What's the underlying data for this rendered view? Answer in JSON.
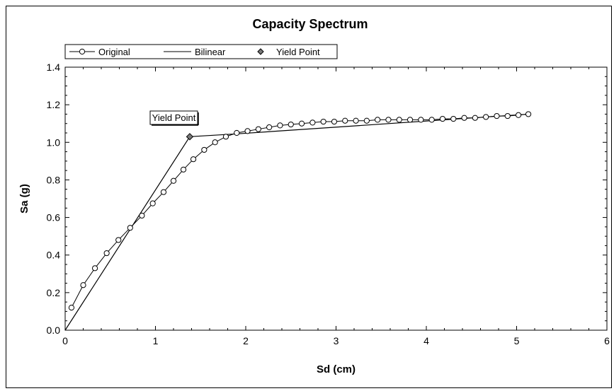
{
  "chart_data": {
    "type": "line",
    "title": "Capacity Spectrum",
    "xlabel": "Sd (cm)",
    "ylabel": "Sa (g)",
    "xlim": [
      0,
      6
    ],
    "ylim": [
      0.0,
      1.4
    ],
    "x_ticks": [
      "0",
      "1",
      "2",
      "3",
      "4",
      "5",
      "6"
    ],
    "y_ticks": [
      "0.0",
      "0.2",
      "0.4",
      "0.6",
      "0.8",
      "1.0",
      "1.2",
      "1.4"
    ],
    "grid": false,
    "legend_position": "top-left",
    "annotation": {
      "text": "Yield Point",
      "x": 1.38,
      "y": 1.03
    },
    "series": [
      {
        "name": "Original",
        "marker": "circle",
        "points": [
          [
            0.07,
            0.12
          ],
          [
            0.2,
            0.24
          ],
          [
            0.33,
            0.33
          ],
          [
            0.46,
            0.41
          ],
          [
            0.59,
            0.48
          ],
          [
            0.72,
            0.545
          ],
          [
            0.85,
            0.61
          ],
          [
            0.97,
            0.675
          ],
          [
            1.09,
            0.735
          ],
          [
            1.2,
            0.795
          ],
          [
            1.31,
            0.855
          ],
          [
            1.42,
            0.91
          ],
          [
            1.54,
            0.96
          ],
          [
            1.66,
            1.0
          ],
          [
            1.78,
            1.03
          ],
          [
            1.9,
            1.05
          ],
          [
            2.02,
            1.06
          ],
          [
            2.14,
            1.07
          ],
          [
            2.26,
            1.08
          ],
          [
            2.38,
            1.09
          ],
          [
            2.5,
            1.095
          ],
          [
            2.62,
            1.1
          ],
          [
            2.74,
            1.105
          ],
          [
            2.86,
            1.11
          ],
          [
            2.98,
            1.11
          ],
          [
            3.1,
            1.115
          ],
          [
            3.22,
            1.115
          ],
          [
            3.34,
            1.115
          ],
          [
            3.46,
            1.12
          ],
          [
            3.58,
            1.12
          ],
          [
            3.7,
            1.12
          ],
          [
            3.82,
            1.12
          ],
          [
            3.94,
            1.12
          ],
          [
            4.06,
            1.12
          ],
          [
            4.18,
            1.125
          ],
          [
            4.3,
            1.125
          ],
          [
            4.42,
            1.13
          ],
          [
            4.54,
            1.13
          ],
          [
            4.66,
            1.135
          ],
          [
            4.78,
            1.14
          ],
          [
            4.9,
            1.14
          ],
          [
            5.02,
            1.145
          ],
          [
            5.13,
            1.15
          ]
        ]
      },
      {
        "name": "Bilinear",
        "marker": "none",
        "points": [
          [
            0.0,
            0.0
          ],
          [
            1.38,
            1.03
          ],
          [
            1.9,
            1.045
          ],
          [
            5.13,
            1.15
          ]
        ]
      },
      {
        "name": "Yield Point",
        "marker": "diamond",
        "points": [
          [
            1.38,
            1.03
          ]
        ]
      }
    ]
  },
  "colors": {
    "line": "#000000",
    "background": "#ffffff"
  }
}
